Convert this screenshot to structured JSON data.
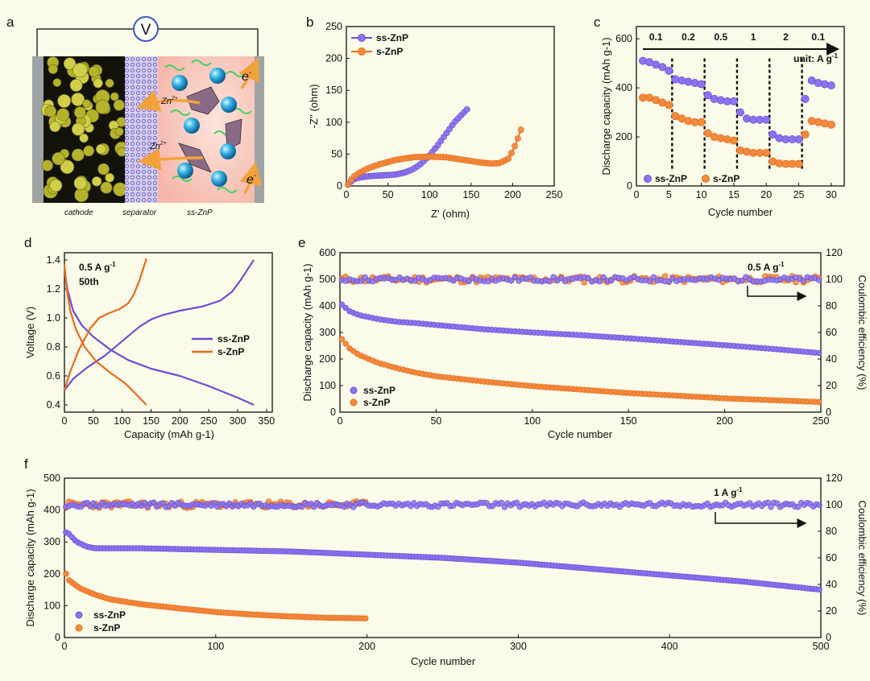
{
  "colors": {
    "purple": "#6a4fd8",
    "orange": "#ea6a1c",
    "purple_fill": "#8a74ee",
    "orange_fill": "#f28a3c",
    "background": "#fbfbe9"
  },
  "panel_labels": {
    "a": "a",
    "b": "b",
    "c": "c",
    "d": "d",
    "e": "e",
    "f": "f"
  },
  "schematic": {
    "voltmeter": "V",
    "electron_top": "e",
    "electron_bottom": "e",
    "electron_sup": "-",
    "zn_top": "Zn",
    "zn_bottom": "Zn",
    "zn_sup": "2+",
    "cathode": "cathode",
    "separator": "separator",
    "electrolyte": "ss-ZnP"
  },
  "chart_data": [
    {
      "panel": "b",
      "type": "line",
      "xlabel": "Z' (ohm)",
      "ylabel": "-Z'' (ohm)",
      "xlim": [
        0,
        250
      ],
      "ylim": [
        0,
        250
      ],
      "xticks": [
        0,
        50,
        100,
        150,
        200,
        250
      ],
      "yticks": [
        0,
        50,
        100,
        150,
        200,
        250
      ],
      "legend": [
        "ss-ZnP",
        "s-ZnP"
      ],
      "series": [
        {
          "name": "ss-ZnP",
          "x": [
            2,
            8,
            15,
            25,
            35,
            50,
            60,
            70,
            80,
            90,
            100,
            110,
            120,
            130,
            145
          ],
          "y": [
            2,
            10,
            13,
            15,
            16,
            17,
            18,
            21,
            26,
            35,
            48,
            64,
            82,
            100,
            120
          ]
        },
        {
          "name": "s-ZnP",
          "x": [
            2,
            8,
            15,
            25,
            40,
            60,
            80,
            100,
            120,
            140,
            160,
            175,
            185,
            195,
            200,
            205,
            210
          ],
          "y": [
            2,
            14,
            20,
            27,
            34,
            41,
            45,
            46,
            45,
            41,
            37,
            35,
            36,
            43,
            55,
            70,
            88
          ]
        }
      ]
    },
    {
      "panel": "c",
      "type": "scatter",
      "xlabel": "Cycle number",
      "ylabel": "Discharge capacity (mAh g-1)",
      "ylabel_sup": "-1",
      "xlim": [
        0,
        32
      ],
      "ylim": [
        0,
        650
      ],
      "xticks": [
        0,
        5,
        10,
        15,
        20,
        25,
        30
      ],
      "yticks": [
        0,
        200,
        400,
        600
      ],
      "rate_labels": [
        "0.1",
        "0.2",
        "0.5",
        "1",
        "2",
        "0.1"
      ],
      "unit_label": "unit: A g",
      "unit_sup": "-1",
      "legend": [
        "ss-ZnP",
        "s-ZnP"
      ],
      "series": [
        {
          "name": "ss-ZnP",
          "values": [
            510,
            505,
            495,
            485,
            470,
            435,
            430,
            425,
            420,
            415,
            370,
            355,
            350,
            345,
            345,
            300,
            275,
            270,
            270,
            270,
            210,
            195,
            190,
            190,
            190,
            355,
            430,
            420,
            415,
            410
          ]
        },
        {
          "name": "s-ZnP",
          "values": [
            360,
            360,
            350,
            340,
            330,
            285,
            275,
            265,
            260,
            260,
            215,
            200,
            195,
            190,
            185,
            145,
            140,
            135,
            135,
            135,
            100,
            92,
            90,
            90,
            90,
            210,
            265,
            260,
            255,
            250
          ]
        }
      ]
    },
    {
      "panel": "d",
      "type": "line",
      "xlabel": "Capacity (mAh g-1)",
      "ylabel": "Voltage (V)",
      "xlim": [
        0,
        360
      ],
      "ylim": [
        0.35,
        1.45
      ],
      "xticks": [
        0,
        50,
        100,
        150,
        200,
        250,
        300,
        350
      ],
      "yticks": [
        0.4,
        0.6,
        0.8,
        1.0,
        1.2,
        1.4
      ],
      "annotation_rate": "0.5 A g",
      "annotation_sup": "-1",
      "annotation_cycle": "50th",
      "legend": [
        "ss-ZnP",
        "s-ZnP"
      ],
      "series": [
        {
          "name": "ss-ZnP (discharge)",
          "x": [
            0,
            5,
            15,
            30,
            50,
            80,
            110,
            150,
            200,
            250,
            300,
            328
          ],
          "y": [
            1.33,
            1.2,
            1.05,
            0.95,
            0.87,
            0.78,
            0.71,
            0.65,
            0.6,
            0.53,
            0.45,
            0.4
          ]
        },
        {
          "name": "ss-ZnP (charge)",
          "x": [
            0,
            15,
            40,
            70,
            100,
            130,
            150,
            170,
            200,
            240,
            270,
            290,
            305,
            318,
            328
          ],
          "y": [
            0.5,
            0.58,
            0.66,
            0.74,
            0.84,
            0.94,
            0.99,
            1.02,
            1.05,
            1.08,
            1.12,
            1.18,
            1.26,
            1.34,
            1.4
          ]
        },
        {
          "name": "s-ZnP (discharge)",
          "x": [
            0,
            4,
            10,
            20,
            35,
            55,
            80,
            105,
            125,
            142
          ],
          "y": [
            1.37,
            1.2,
            1.05,
            0.92,
            0.8,
            0.7,
            0.62,
            0.55,
            0.47,
            0.4
          ]
        },
        {
          "name": "s-ZnP (charge)",
          "x": [
            0,
            10,
            25,
            45,
            60,
            75,
            95,
            110,
            120,
            130,
            138,
            142
          ],
          "y": [
            0.5,
            0.63,
            0.78,
            0.93,
            1.0,
            1.03,
            1.06,
            1.1,
            1.16,
            1.26,
            1.36,
            1.41
          ]
        }
      ]
    },
    {
      "panel": "e",
      "type": "scatter",
      "xlabel": "Cycle number",
      "ylabel": "Discharge capacity (mAh g-1)",
      "ylabel_sup": "-1",
      "y2label": "Coulombic efficiency (%)",
      "xlim": [
        0,
        250
      ],
      "ylim": [
        0,
        600
      ],
      "y2lim": [
        0,
        120
      ],
      "xticks": [
        0,
        50,
        100,
        150,
        200,
        250
      ],
      "yticks": [
        0,
        100,
        200,
        300,
        400,
        500,
        600
      ],
      "y2ticks": [
        0,
        20,
        40,
        60,
        80,
        100,
        120
      ],
      "annotation": "0.5 A g",
      "annotation_sup": "-1",
      "legend": [
        "ss-ZnP",
        "s-ZnP"
      ],
      "series": [
        {
          "name": "ss-ZnP capacity",
          "x": [
            1,
            5,
            10,
            20,
            30,
            40,
            50,
            75,
            100,
            125,
            150,
            175,
            200,
            225,
            250
          ],
          "values": [
            405,
            380,
            365,
            350,
            340,
            335,
            328,
            312,
            300,
            290,
            278,
            265,
            252,
            238,
            222
          ]
        },
        {
          "name": "s-ZnP capacity",
          "x": [
            1,
            5,
            10,
            20,
            30,
            40,
            50,
            75,
            100,
            125,
            150,
            175,
            200,
            225,
            250
          ],
          "values": [
            275,
            240,
            215,
            185,
            165,
            148,
            135,
            115,
            98,
            85,
            72,
            62,
            52,
            45,
            38
          ]
        },
        {
          "name": "ss-ZnP efficiency",
          "y2_mean": 100
        },
        {
          "name": "s-ZnP efficiency",
          "y2_mean": 100
        }
      ]
    },
    {
      "panel": "f",
      "type": "scatter",
      "xlabel": "Cycle number",
      "ylabel": "Discharge capacity (mAh g-1)",
      "ylabel_sup": "-1",
      "y2label": "Coulombic efficiency (%)",
      "xlim": [
        0,
        500
      ],
      "ylim": [
        0,
        500
      ],
      "y2lim": [
        0,
        120
      ],
      "xticks": [
        0,
        100,
        200,
        300,
        400,
        500
      ],
      "yticks": [
        0,
        100,
        200,
        300,
        400,
        500
      ],
      "y2ticks": [
        0,
        20,
        40,
        60,
        80,
        100,
        120
      ],
      "annotation": "1 A g",
      "annotation_sup": "-1",
      "legend": [
        "ss-ZnP",
        "s-ZnP"
      ],
      "series": [
        {
          "name": "ss-ZnP capacity",
          "x": [
            1,
            3,
            8,
            15,
            20,
            50,
            100,
            150,
            200,
            250,
            300,
            350,
            400,
            450,
            500
          ],
          "values": [
            330,
            325,
            300,
            285,
            280,
            280,
            275,
            270,
            260,
            250,
            235,
            215,
            195,
            175,
            150
          ]
        },
        {
          "name": "s-ZnP capacity",
          "x": [
            1,
            3,
            10,
            20,
            30,
            50,
            75,
            100,
            125,
            150,
            175,
            200
          ],
          "values": [
            200,
            180,
            155,
            135,
            120,
            105,
            92,
            80,
            72,
            66,
            62,
            60
          ]
        },
        {
          "name": "ss-ZnP efficiency",
          "y2_mean": 100
        },
        {
          "name": "s-ZnP efficiency",
          "y2_mean": 100
        }
      ]
    }
  ]
}
